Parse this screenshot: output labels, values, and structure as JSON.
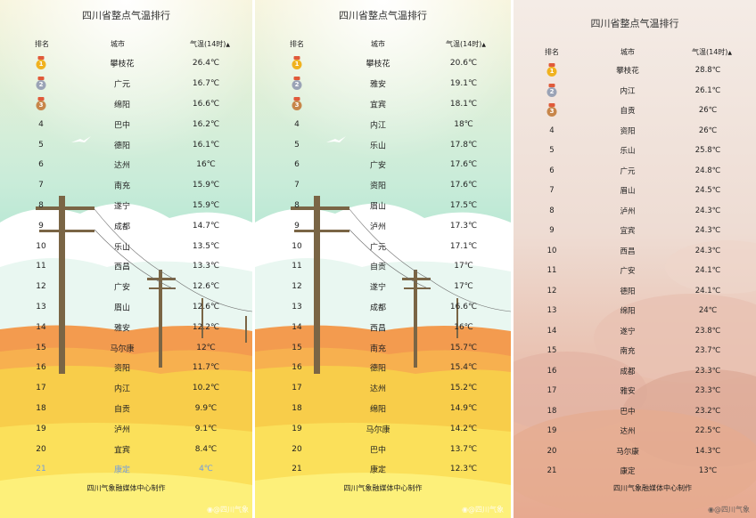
{
  "columns": {
    "rank": "排名",
    "city": "城市",
    "temp": "气温(14时)",
    "sort_icon": "sort-up-icon"
  },
  "credit": "四川气象融媒体中心制作",
  "watermark": "@四川气象",
  "colors": {
    "medal_gold": "#f0b21f",
    "medal_silver": "#9aa3b6",
    "medal_bronze": "#c7864a",
    "highlight": "#6f9be0"
  },
  "panels": [
    {
      "title": "四川省整点气温排行",
      "rows": [
        {
          "rank": "1",
          "city": "攀枝花",
          "temp": "26.4℃"
        },
        {
          "rank": "2",
          "city": "广元",
          "temp": "16.7℃"
        },
        {
          "rank": "3",
          "city": "绵阳",
          "temp": "16.6℃"
        },
        {
          "rank": "4",
          "city": "巴中",
          "temp": "16.2℃"
        },
        {
          "rank": "5",
          "city": "德阳",
          "temp": "16.1℃"
        },
        {
          "rank": "6",
          "city": "达州",
          "temp": "16℃"
        },
        {
          "rank": "7",
          "city": "南充",
          "temp": "15.9℃"
        },
        {
          "rank": "8",
          "city": "遂宁",
          "temp": "15.9℃"
        },
        {
          "rank": "9",
          "city": "成都",
          "temp": "14.7℃"
        },
        {
          "rank": "10",
          "city": "乐山",
          "temp": "13.5℃"
        },
        {
          "rank": "11",
          "city": "西昌",
          "temp": "13.3℃"
        },
        {
          "rank": "12",
          "city": "广安",
          "temp": "12.6℃"
        },
        {
          "rank": "13",
          "city": "眉山",
          "temp": "12.6℃"
        },
        {
          "rank": "14",
          "city": "雅安",
          "temp": "12.2℃"
        },
        {
          "rank": "15",
          "city": "马尔康",
          "temp": "12℃"
        },
        {
          "rank": "16",
          "city": "资阳",
          "temp": "11.7℃"
        },
        {
          "rank": "17",
          "city": "内江",
          "temp": "10.2℃"
        },
        {
          "rank": "18",
          "city": "自贡",
          "temp": "9.9℃"
        },
        {
          "rank": "19",
          "city": "泸州",
          "temp": "9.1℃"
        },
        {
          "rank": "20",
          "city": "宜宾",
          "temp": "8.4℃"
        },
        {
          "rank": "21",
          "city": "康定",
          "temp": "4℃"
        }
      ]
    },
    {
      "title": "四川省整点气温排行",
      "rows": [
        {
          "rank": "1",
          "city": "攀枝花",
          "temp": "20.6℃"
        },
        {
          "rank": "2",
          "city": "雅安",
          "temp": "19.1℃"
        },
        {
          "rank": "3",
          "city": "宜宾",
          "temp": "18.1℃"
        },
        {
          "rank": "4",
          "city": "内江",
          "temp": "18℃"
        },
        {
          "rank": "5",
          "city": "乐山",
          "temp": "17.8℃"
        },
        {
          "rank": "6",
          "city": "广安",
          "temp": "17.6℃"
        },
        {
          "rank": "7",
          "city": "资阳",
          "temp": "17.6℃"
        },
        {
          "rank": "8",
          "city": "眉山",
          "temp": "17.5℃"
        },
        {
          "rank": "9",
          "city": "泸州",
          "temp": "17.3℃"
        },
        {
          "rank": "10",
          "city": "广元",
          "temp": "17.1℃"
        },
        {
          "rank": "11",
          "city": "自贡",
          "temp": "17℃"
        },
        {
          "rank": "12",
          "city": "遂宁",
          "temp": "17℃"
        },
        {
          "rank": "13",
          "city": "成都",
          "temp": "16.6℃"
        },
        {
          "rank": "14",
          "city": "西昌",
          "temp": "16℃"
        },
        {
          "rank": "15",
          "city": "南充",
          "temp": "15.7℃"
        },
        {
          "rank": "16",
          "city": "德阳",
          "temp": "15.4℃"
        },
        {
          "rank": "17",
          "city": "达州",
          "temp": "15.2℃"
        },
        {
          "rank": "18",
          "city": "绵阳",
          "temp": "14.9℃"
        },
        {
          "rank": "19",
          "city": "马尔康",
          "temp": "14.2℃"
        },
        {
          "rank": "20",
          "city": "巴中",
          "temp": "13.7℃"
        },
        {
          "rank": "21",
          "city": "康定",
          "temp": "12.3℃"
        }
      ]
    },
    {
      "title": "四川省整点气温排行",
      "rows": [
        {
          "rank": "1",
          "city": "攀枝花",
          "temp": "28.8℃"
        },
        {
          "rank": "2",
          "city": "内江",
          "temp": "26.1℃"
        },
        {
          "rank": "3",
          "city": "自贡",
          "temp": "26℃"
        },
        {
          "rank": "4",
          "city": "资阳",
          "temp": "26℃"
        },
        {
          "rank": "5",
          "city": "乐山",
          "temp": "25.8℃"
        },
        {
          "rank": "6",
          "city": "广元",
          "temp": "24.8℃"
        },
        {
          "rank": "7",
          "city": "眉山",
          "temp": "24.5℃"
        },
        {
          "rank": "8",
          "city": "泸州",
          "temp": "24.3℃"
        },
        {
          "rank": "9",
          "city": "宜宾",
          "temp": "24.3℃"
        },
        {
          "rank": "10",
          "city": "西昌",
          "temp": "24.3℃"
        },
        {
          "rank": "11",
          "city": "广安",
          "temp": "24.1℃"
        },
        {
          "rank": "12",
          "city": "德阳",
          "temp": "24.1℃"
        },
        {
          "rank": "13",
          "city": "绵阳",
          "temp": "24℃"
        },
        {
          "rank": "14",
          "city": "遂宁",
          "temp": "23.8℃"
        },
        {
          "rank": "15",
          "city": "南充",
          "temp": "23.7℃"
        },
        {
          "rank": "16",
          "city": "成都",
          "temp": "23.3℃"
        },
        {
          "rank": "17",
          "city": "雅安",
          "temp": "23.3℃"
        },
        {
          "rank": "18",
          "city": "巴中",
          "temp": "23.2℃"
        },
        {
          "rank": "19",
          "city": "达州",
          "temp": "22.5℃"
        },
        {
          "rank": "20",
          "city": "马尔康",
          "temp": "14.3℃"
        },
        {
          "rank": "21",
          "city": "康定",
          "temp": "13℃"
        }
      ]
    }
  ]
}
